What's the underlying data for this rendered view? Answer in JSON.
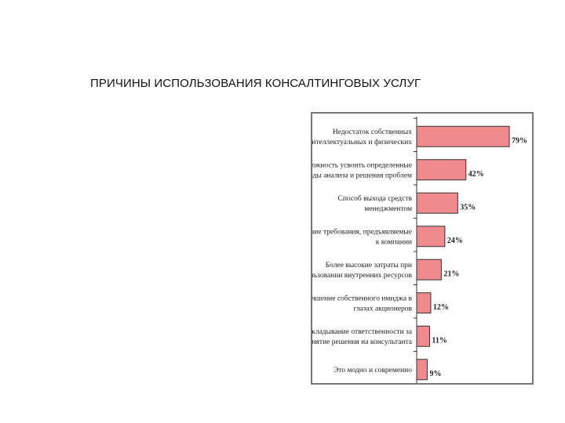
{
  "slide": {
    "title": "ПРИЧИНЫ ИСПОЛЬЗОВАНИЯ КОНСАЛТИНГОВЫХ УСЛУГ"
  },
  "chart_data": {
    "type": "bar",
    "orientation": "horizontal",
    "categories": [
      [
        "Недостаток собственных",
        "интеллектуальных и физических"
      ],
      [
        "Возможность усвоить определенные",
        "методы анализа и решения проблем"
      ],
      [
        "Способ выхода средств",
        "менеджментом"
      ],
      [
        "Внешние требования, предъявляемые",
        "к компании"
      ],
      [
        "Более высокие затраты при",
        "использовании внутренних ресурсов"
      ],
      [
        "Улучшение собственного имиджа в",
        "глазах акционеров"
      ],
      [
        "Перекладывание ответственности за",
        "принятие решения на консультанта"
      ],
      [
        "Это модно и современно"
      ]
    ],
    "values": [
      79,
      42,
      35,
      24,
      21,
      12,
      11,
      9
    ],
    "value_labels": [
      "79%",
      "42%",
      "35%",
      "24%",
      "21%",
      "12%",
      "11%",
      "9%"
    ],
    "xlim": [
      0,
      85
    ],
    "bar_color": "#ef8a8f",
    "grid": false,
    "legend": "none"
  }
}
